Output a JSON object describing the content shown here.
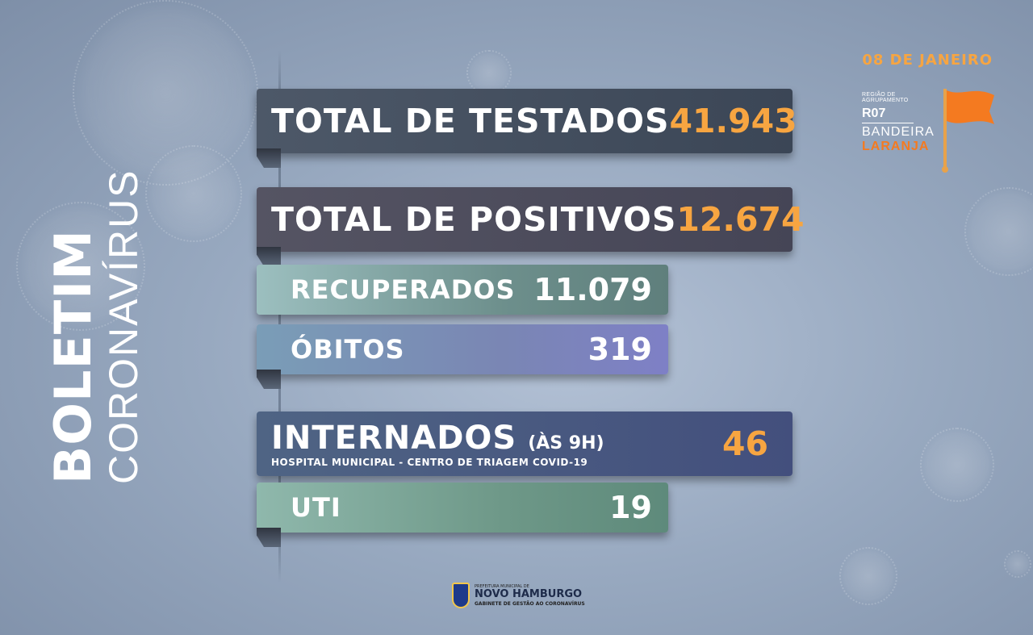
{
  "side_title": {
    "bold": "BOLETIM",
    "light": "CORONAVÍRUS"
  },
  "date": "08 DE JANEIRO",
  "region": {
    "heading": "REGIÃO DE AGRUPAMENTO",
    "code": "R07",
    "flag_label": "BANDEIRA",
    "flag_color": "LARANJA",
    "flag_color_hex": "#f47a20"
  },
  "stats": {
    "testados": {
      "label": "TOTAL DE TESTADOS",
      "value": "41.943"
    },
    "positivos": {
      "label": "TOTAL DE POSITIVOS",
      "value": "12.674"
    },
    "recuperados": {
      "label": "RECUPERADOS",
      "value": "11.079"
    },
    "obitos": {
      "label": "ÓBITOS",
      "value": "319"
    },
    "internados": {
      "label": "INTERNADOS",
      "time": "(ÀS 9H)",
      "sub": "HOSPITAL MUNICIPAL - CENTRO DE TRIAGEM COVID-19",
      "value": "46"
    },
    "uti": {
      "label": "UTI",
      "value": "19"
    }
  },
  "footer": {
    "line1": "PREFEITURA MUNICIPAL DE",
    "line2": "NOVO HAMBURGO",
    "line3": "GABINETE DE GESTÃO AO CORONAVÍRUS"
  },
  "colors": {
    "accent": "#f7a541",
    "background": "#98a9c0"
  }
}
